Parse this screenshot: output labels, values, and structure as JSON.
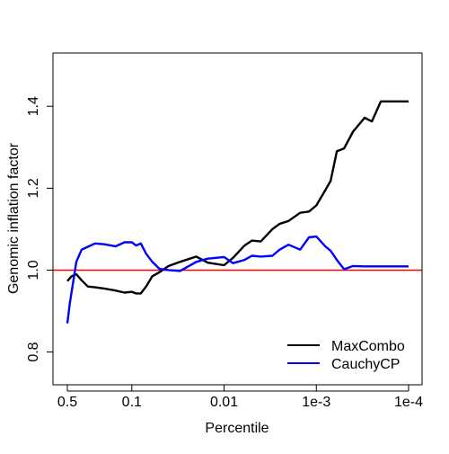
{
  "chart_data": {
    "type": "line",
    "xlabel": "Percentile",
    "ylabel": "Genomic inflation factor",
    "x_scale": "log10-reversed",
    "xlim": [
      0.5,
      0.0001
    ],
    "ylim": [
      0.72,
      1.53
    ],
    "x_ticks": [
      {
        "value": 0.5,
        "label": "0.5"
      },
      {
        "value": 0.1,
        "label": "0.1"
      },
      {
        "value": 0.01,
        "label": "0.01"
      },
      {
        "value": 0.001,
        "label": "1e-3"
      },
      {
        "value": 0.0001,
        "label": "1e-4"
      }
    ],
    "y_ticks": [
      {
        "value": 0.8,
        "label": "0.8"
      },
      {
        "value": 1.0,
        "label": "1.0"
      },
      {
        "value": 1.2,
        "label": "1.2"
      },
      {
        "value": 1.4,
        "label": "1.4"
      }
    ],
    "reference_line": {
      "y": 1.0,
      "color": "#ff0000"
    },
    "legend_position": "bottom-right",
    "grid": false,
    "series": [
      {
        "name": "MaxCombo",
        "color": "#000000",
        "x": [
          0.5,
          0.45,
          0.4,
          0.35,
          0.3,
          0.25,
          0.2,
          0.15,
          0.12,
          0.1,
          0.09,
          0.08,
          0.07,
          0.06,
          0.05,
          0.04,
          0.03,
          0.02,
          0.015,
          0.01,
          0.008,
          0.006,
          0.005,
          0.004,
          0.003,
          0.0025,
          0.002,
          0.0015,
          0.0012,
          0.001,
          0.0008,
          0.0007,
          0.0006,
          0.0005,
          0.0004,
          0.0003,
          0.00025,
          0.0002,
          0.00015,
          0.00012,
          0.0001
        ],
        "y": [
          0.973,
          0.985,
          0.99,
          0.975,
          0.96,
          0.958,
          0.955,
          0.95,
          0.945,
          0.947,
          0.943,
          0.943,
          0.96,
          0.985,
          0.995,
          1.01,
          1.02,
          1.033,
          1.018,
          1.012,
          1.03,
          1.06,
          1.072,
          1.07,
          1.1,
          1.113,
          1.12,
          1.14,
          1.143,
          1.158,
          1.195,
          1.218,
          1.29,
          1.297,
          1.338,
          1.372,
          1.363,
          1.412,
          1.412,
          1.412,
          1.412
        ]
      },
      {
        "name": "CauchyCP",
        "color": "#0000ff",
        "x": [
          0.5,
          0.47,
          0.44,
          0.4,
          0.35,
          0.3,
          0.25,
          0.2,
          0.15,
          0.12,
          0.1,
          0.09,
          0.08,
          0.07,
          0.06,
          0.05,
          0.04,
          0.03,
          0.02,
          0.015,
          0.01,
          0.008,
          0.006,
          0.005,
          0.004,
          0.003,
          0.0025,
          0.002,
          0.0015,
          0.0012,
          0.001,
          0.0008,
          0.0007,
          0.0006,
          0.0005,
          0.0004,
          0.0003,
          0.00025,
          0.0002,
          0.00015,
          0.00012,
          0.0001
        ],
        "y": [
          0.87,
          0.92,
          0.96,
          1.02,
          1.05,
          1.057,
          1.065,
          1.063,
          1.058,
          1.068,
          1.068,
          1.06,
          1.065,
          1.04,
          1.02,
          1.003,
          1.0,
          0.998,
          1.02,
          1.028,
          1.032,
          1.017,
          1.025,
          1.035,
          1.033,
          1.035,
          1.05,
          1.062,
          1.05,
          1.08,
          1.082,
          1.058,
          1.047,
          1.025,
          1.002,
          1.01,
          1.009,
          1.009,
          1.009,
          1.009,
          1.009,
          1.009
        ]
      }
    ]
  }
}
